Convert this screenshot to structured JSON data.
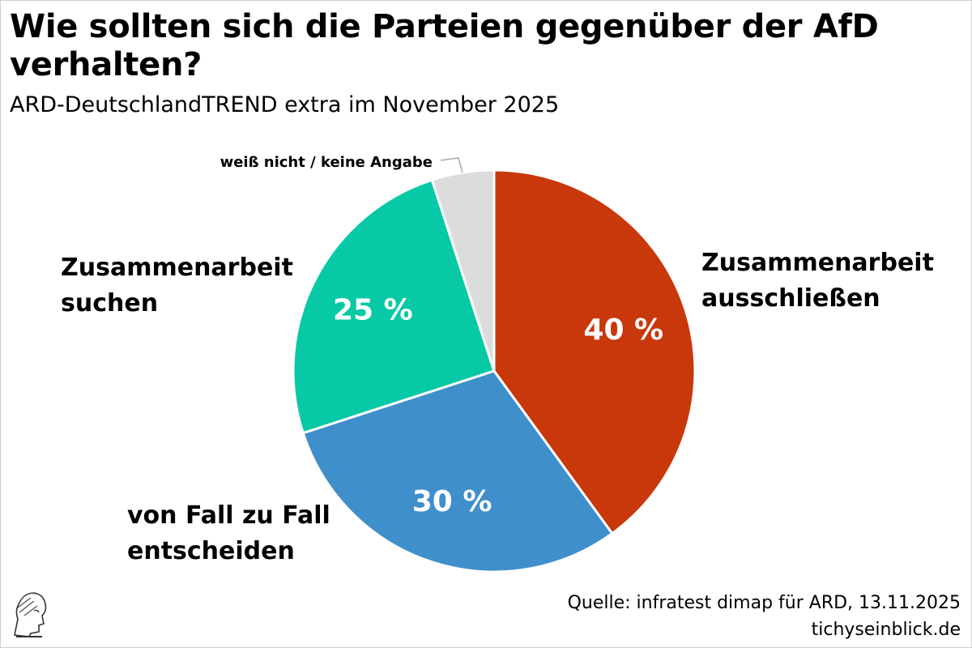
{
  "header": {
    "title": "Wie sollten sich die Parteien gegenüber der AfD verhalten?",
    "subtitle": "ARD-DeutschlandTREND extra im November 2025"
  },
  "footer": {
    "source": "Quelle: infratest dimap für ARD, 13.11.2025",
    "site": "tichyseinblick.de"
  },
  "chart_data": {
    "type": "pie",
    "title": "Wie sollten sich die Parteien gegenüber der AfD verhalten?",
    "subtitle": "ARD-DeutschlandTREND extra im November 2025",
    "slices": [
      {
        "label_lines": [
          "Zusammenarbeit",
          "ausschließen"
        ],
        "value": 40,
        "value_label": "40 %",
        "color": "#c8380a"
      },
      {
        "label_lines": [
          "von Fall zu Fall",
          "entscheiden"
        ],
        "value": 30,
        "value_label": "30 %",
        "color": "#3f8fcb"
      },
      {
        "label_lines": [
          "Zusammenarbeit",
          "suchen"
        ],
        "value": 25,
        "value_label": "25 %",
        "color": "#08c9a5"
      },
      {
        "label_lines": [
          "weiß nicht / keine Angabe"
        ],
        "value": 5,
        "value_label": "",
        "color": "#dcdcdc"
      }
    ]
  }
}
